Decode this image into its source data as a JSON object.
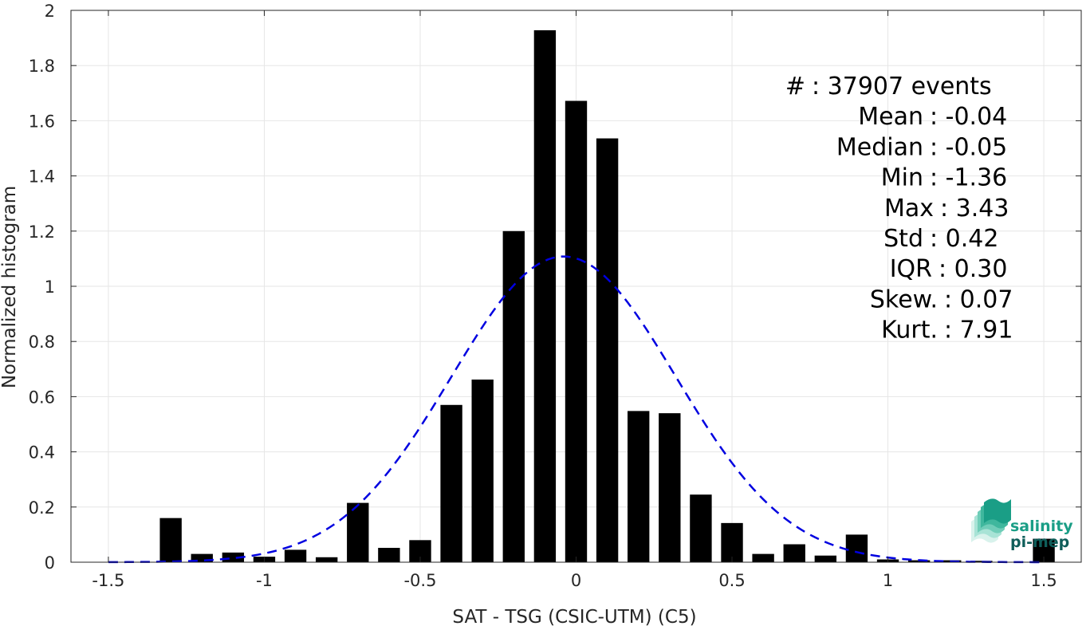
{
  "chart_data": {
    "type": "bar",
    "xlabel": "SAT - TSG (CSIC-UTM) (C5)",
    "ylabel": "Normalized histogram",
    "xlim": [
      -1.62,
      1.62
    ],
    "ylim": [
      0,
      2
    ],
    "grid": true,
    "x_ticks": [
      -1.5,
      -1,
      -0.5,
      0,
      0.5,
      1,
      1.5
    ],
    "x_tick_labels": [
      "-1.5",
      "-1",
      "-0.5",
      "0",
      "0.5",
      "1",
      "1.5"
    ],
    "y_ticks": [
      0,
      0.2,
      0.4,
      0.6,
      0.8,
      1,
      1.2,
      1.4,
      1.6,
      1.8,
      2
    ],
    "y_tick_labels": [
      "0",
      "0.2",
      "0.4",
      "0.6",
      "0.8",
      "1",
      "1.2",
      "1.4",
      "1.6",
      "1.8",
      "2"
    ],
    "bin_width": 0.1,
    "bar_width_fraction": 0.7,
    "bars": {
      "color": "#000000",
      "x": [
        -1.5,
        -1.4,
        -1.3,
        -1.2,
        -1.1,
        -1.0,
        -0.9,
        -0.8,
        -0.7,
        -0.6,
        -0.5,
        -0.4,
        -0.3,
        -0.2,
        -0.1,
        0.0,
        0.1,
        0.2,
        0.3,
        0.4,
        0.5,
        0.6,
        0.7,
        0.8,
        0.9,
        1.0,
        1.1,
        1.2,
        1.3,
        1.4,
        1.5
      ],
      "values": [
        0,
        0,
        0.16,
        0.03,
        0.035,
        0.02,
        0.045,
        0.018,
        0.215,
        0.052,
        0.08,
        0.57,
        0.662,
        1.2,
        1.928,
        1.672,
        1.536,
        0.548,
        0.54,
        0.245,
        0.142,
        0.03,
        0.065,
        0.024,
        0.1,
        0.01,
        0.007,
        0.007,
        0.005,
        0,
        0.085
      ]
    },
    "fit_curve": {
      "type": "gaussian",
      "style": "dashed",
      "color": "#0000e0",
      "mean": -0.04,
      "std": 0.36,
      "peak": 1.108,
      "x_range": [
        -1.5,
        1.5
      ]
    },
    "stats": [
      {
        "label": "#",
        "value": ": 37907 events"
      },
      {
        "label": "Mean",
        "value": ": -0.04"
      },
      {
        "label": "Median",
        "value": ": -0.05"
      },
      {
        "label": "Min",
        "value": ": -1.36"
      },
      {
        "label": "Max",
        "value": ": 3.43"
      },
      {
        "label": "Std",
        "value": ": 0.42"
      },
      {
        "label": "IQR",
        "value": ": 0.30"
      },
      {
        "label": "Skew.",
        "value": ": 0.07"
      },
      {
        "label": "Kurt.",
        "value": ": 7.91"
      }
    ]
  },
  "logo": {
    "line1": "salinity",
    "line2": "pi-mep",
    "color_primary": "#1a9e86",
    "color_dark": "#0f5e5a",
    "icon": "salinity-wave-icon"
  }
}
